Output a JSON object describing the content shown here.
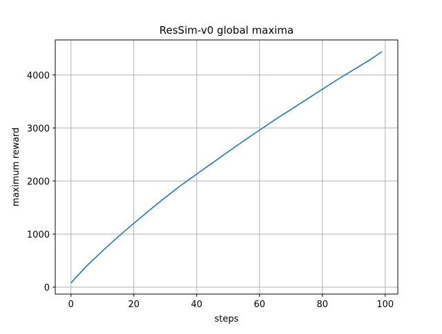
{
  "chart_data": {
    "type": "line",
    "title": "ResSim-v0 global maxima",
    "xlabel": "steps",
    "ylabel": "maximum reward",
    "xlim": [
      -5,
      104
    ],
    "ylim": [
      -130,
      4660
    ],
    "xticks": [
      0,
      20,
      40,
      60,
      80,
      100
    ],
    "yticks": [
      0,
      1000,
      2000,
      3000,
      4000
    ],
    "grid": true,
    "legend": "none",
    "series": [
      {
        "color": "#1f77b4",
        "x": [
          0,
          5,
          10,
          15,
          20,
          25,
          30,
          35,
          40,
          45,
          50,
          55,
          60,
          65,
          70,
          75,
          80,
          85,
          90,
          95,
          99
        ],
        "y": [
          80,
          400,
          680,
          950,
          1205,
          1450,
          1690,
          1920,
          2130,
          2340,
          2550,
          2760,
          2960,
          3160,
          3350,
          3540,
          3730,
          3920,
          4100,
          4280,
          4440
        ]
      }
    ]
  }
}
